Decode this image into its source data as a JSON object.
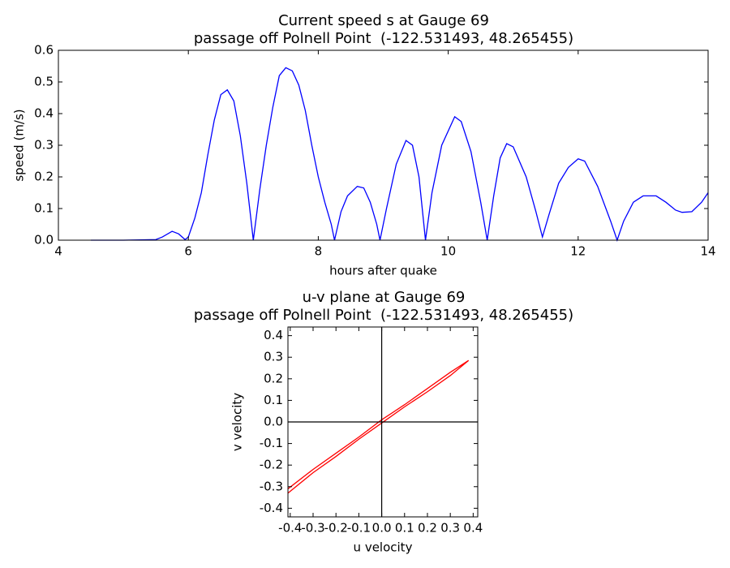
{
  "chart_data": [
    {
      "type": "line",
      "title": "Current speed s at Gauge 69",
      "subtitle": "passage off Polnell Point  (-122.531493, 48.265455)",
      "x_label": "hours after quake",
      "y_label": "speed (m/s)",
      "xlim": [
        4,
        14
      ],
      "ylim": [
        0,
        0.6
      ],
      "xticks": [
        4,
        6,
        8,
        10,
        12,
        14
      ],
      "yticks": [
        {
          "value": 0,
          "label": "0.0"
        },
        0.1,
        0.2,
        0.3,
        0.4,
        0.5,
        0.6
      ],
      "x": [
        4.5,
        5.0,
        5.5,
        5.6,
        5.75,
        5.85,
        5.95,
        6.0,
        6.1,
        6.2,
        6.3,
        6.4,
        6.5,
        6.6,
        6.7,
        6.8,
        6.9,
        7.0,
        7.05,
        7.1,
        7.2,
        7.3,
        7.4,
        7.5,
        7.6,
        7.7,
        7.8,
        7.9,
        8.0,
        8.1,
        8.2,
        8.25,
        8.35,
        8.45,
        8.6,
        8.7,
        8.8,
        8.9,
        8.95,
        9.05,
        9.2,
        9.35,
        9.45,
        9.55,
        9.65,
        9.75,
        9.9,
        10.1,
        10.2,
        10.35,
        10.5,
        10.6,
        10.7,
        10.8,
        10.9,
        11.0,
        11.2,
        11.35,
        11.45,
        11.55,
        11.7,
        11.85,
        12.0,
        12.1,
        12.3,
        12.5,
        12.6,
        12.7,
        12.85,
        13.0,
        13.2,
        13.35,
        13.5,
        13.6,
        13.75,
        13.9,
        14.0
      ],
      "series": [
        {
          "color": "#0000ff",
          "values": [
            0,
            0,
            0.002,
            0.01,
            0.028,
            0.02,
            0.002,
            0.01,
            0.07,
            0.15,
            0.27,
            0.38,
            0.46,
            0.475,
            0.44,
            0.33,
            0.18,
            0,
            0.08,
            0.16,
            0.3,
            0.42,
            0.52,
            0.545,
            0.535,
            0.49,
            0.41,
            0.3,
            0.2,
            0.12,
            0.05,
            0,
            0.09,
            0.14,
            0.17,
            0.165,
            0.12,
            0.05,
            0,
            0.1,
            0.24,
            0.315,
            0.3,
            0.2,
            0,
            0.15,
            0.3,
            0.39,
            0.375,
            0.28,
            0.12,
            0,
            0.14,
            0.26,
            0.305,
            0.295,
            0.2,
            0.09,
            0.01,
            0.08,
            0.18,
            0.23,
            0.257,
            0.25,
            0.17,
            0.06,
            0,
            0.06,
            0.12,
            0.14,
            0.14,
            0.12,
            0.095,
            0.088,
            0.09,
            0.12,
            0.15
          ]
        }
      ],
      "zero_lines": false
    },
    {
      "type": "line",
      "title": "u-v plane at Gauge 69",
      "subtitle": "passage off Polnell Point  (-122.531493, 48.265455)",
      "x_label": "u velocity",
      "y_label": "v velocity",
      "xlim": [
        -0.41,
        0.42
      ],
      "ylim": [
        -0.44,
        0.44
      ],
      "xticks": [
        -0.4,
        -0.3,
        -0.2,
        -0.1,
        {
          "value": 0,
          "label": "0.0"
        },
        0.1,
        0.2,
        0.3,
        0.4
      ],
      "yticks": [
        -0.4,
        -0.3,
        -0.2,
        -0.1,
        {
          "value": 0,
          "label": "0.0"
        },
        0.1,
        0.2,
        0.3,
        0.4
      ],
      "x": [
        -0.41,
        -0.3,
        -0.2,
        -0.1,
        0,
        0.1,
        0.2,
        0.3,
        0.38,
        0.3,
        0.2,
        0.1,
        0,
        -0.1,
        -0.2,
        -0.3,
        -0.41
      ],
      "series": [
        {
          "color": "#ff0000",
          "values": [
            -0.33,
            -0.235,
            -0.16,
            -0.08,
            -0.005,
            0.07,
            0.14,
            0.215,
            0.285,
            0.23,
            0.155,
            0.08,
            0.01,
            -0.07,
            -0.145,
            -0.22,
            -0.31
          ]
        }
      ],
      "zero_lines": true
    }
  ]
}
